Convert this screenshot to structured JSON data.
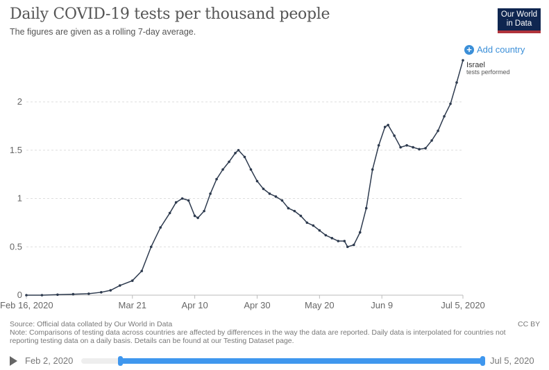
{
  "header": {
    "title": "Daily COVID-19 tests per thousand people",
    "subtitle": "The figures are given as a rolling 7-day average.",
    "logo_text": "Our World in Data",
    "add_country": "Add country"
  },
  "chart_data": {
    "type": "line",
    "title": "Daily COVID-19 tests per thousand people",
    "xlabel": "",
    "ylabel": "",
    "xlim": [
      "2020-02-16",
      "2020-07-05"
    ],
    "ylim": [
      0,
      2.45
    ],
    "grid": true,
    "y_ticks": [
      {
        "value": 0,
        "label": "0"
      },
      {
        "value": 0.5,
        "label": "0.5"
      },
      {
        "value": 1,
        "label": "1"
      },
      {
        "value": 1.5,
        "label": "1.5"
      },
      {
        "value": 2,
        "label": "2"
      }
    ],
    "x_ticks": [
      {
        "date": "2020-02-16",
        "label": "Feb 16, 2020"
      },
      {
        "date": "2020-03-21",
        "label": "Mar 21"
      },
      {
        "date": "2020-04-10",
        "label": "Apr 10"
      },
      {
        "date": "2020-04-30",
        "label": "Apr 30"
      },
      {
        "date": "2020-05-20",
        "label": "May 20"
      },
      {
        "date": "2020-06-09",
        "label": "Jun 9"
      },
      {
        "date": "2020-07-05",
        "label": "Jul 5, 2020"
      }
    ],
    "series": [
      {
        "name": "Israel",
        "sublabel": "tests performed",
        "color": "#2d3a4e",
        "points": [
          [
            "2020-02-16",
            0
          ],
          [
            "2020-02-21",
            0
          ],
          [
            "2020-02-26",
            0.005
          ],
          [
            "2020-03-02",
            0.01
          ],
          [
            "2020-03-07",
            0.015
          ],
          [
            "2020-03-11",
            0.03
          ],
          [
            "2020-03-14",
            0.05
          ],
          [
            "2020-03-17",
            0.1
          ],
          [
            "2020-03-21",
            0.15
          ],
          [
            "2020-03-24",
            0.25
          ],
          [
            "2020-03-27",
            0.5
          ],
          [
            "2020-03-30",
            0.7
          ],
          [
            "2020-04-02",
            0.85
          ],
          [
            "2020-04-04",
            0.96
          ],
          [
            "2020-04-06",
            1.0
          ],
          [
            "2020-04-08",
            0.98
          ],
          [
            "2020-04-10",
            0.82
          ],
          [
            "2020-04-11",
            0.8
          ],
          [
            "2020-04-13",
            0.87
          ],
          [
            "2020-04-15",
            1.05
          ],
          [
            "2020-04-17",
            1.2
          ],
          [
            "2020-04-19",
            1.3
          ],
          [
            "2020-04-21",
            1.38
          ],
          [
            "2020-04-23",
            1.47
          ],
          [
            "2020-04-24",
            1.5
          ],
          [
            "2020-04-26",
            1.43
          ],
          [
            "2020-04-28",
            1.3
          ],
          [
            "2020-04-30",
            1.18
          ],
          [
            "2020-05-02",
            1.1
          ],
          [
            "2020-05-04",
            1.05
          ],
          [
            "2020-05-06",
            1.02
          ],
          [
            "2020-05-08",
            0.98
          ],
          [
            "2020-05-10",
            0.9
          ],
          [
            "2020-05-12",
            0.87
          ],
          [
            "2020-05-14",
            0.82
          ],
          [
            "2020-05-16",
            0.75
          ],
          [
            "2020-05-18",
            0.72
          ],
          [
            "2020-05-20",
            0.67
          ],
          [
            "2020-05-22",
            0.62
          ],
          [
            "2020-05-24",
            0.59
          ],
          [
            "2020-05-26",
            0.56
          ],
          [
            "2020-05-28",
            0.56
          ],
          [
            "2020-05-29",
            0.5
          ],
          [
            "2020-05-31",
            0.52
          ],
          [
            "2020-06-02",
            0.65
          ],
          [
            "2020-06-04",
            0.9
          ],
          [
            "2020-06-06",
            1.3
          ],
          [
            "2020-06-08",
            1.55
          ],
          [
            "2020-06-10",
            1.74
          ],
          [
            "2020-06-11",
            1.76
          ],
          [
            "2020-06-13",
            1.65
          ],
          [
            "2020-06-15",
            1.53
          ],
          [
            "2020-06-17",
            1.55
          ],
          [
            "2020-06-19",
            1.53
          ],
          [
            "2020-06-21",
            1.51
          ],
          [
            "2020-06-23",
            1.52
          ],
          [
            "2020-06-25",
            1.6
          ],
          [
            "2020-06-27",
            1.7
          ],
          [
            "2020-06-29",
            1.85
          ],
          [
            "2020-07-01",
            1.98
          ],
          [
            "2020-07-03",
            2.2
          ],
          [
            "2020-07-05",
            2.43
          ]
        ]
      }
    ]
  },
  "footer": {
    "source": "Source: Official data collated by Our World in Data",
    "note": "Note: Comparisons of testing data across countries are affected by differences in the way the data are reported. Daily data is interpolated for countries not reporting testing data on a daily basis. Details can be found at our Testing Dataset page.",
    "license": "CC BY"
  },
  "timeline": {
    "start": "Feb 2, 2020",
    "end": "Jul 5, 2020",
    "accent": "#3f97ee"
  }
}
